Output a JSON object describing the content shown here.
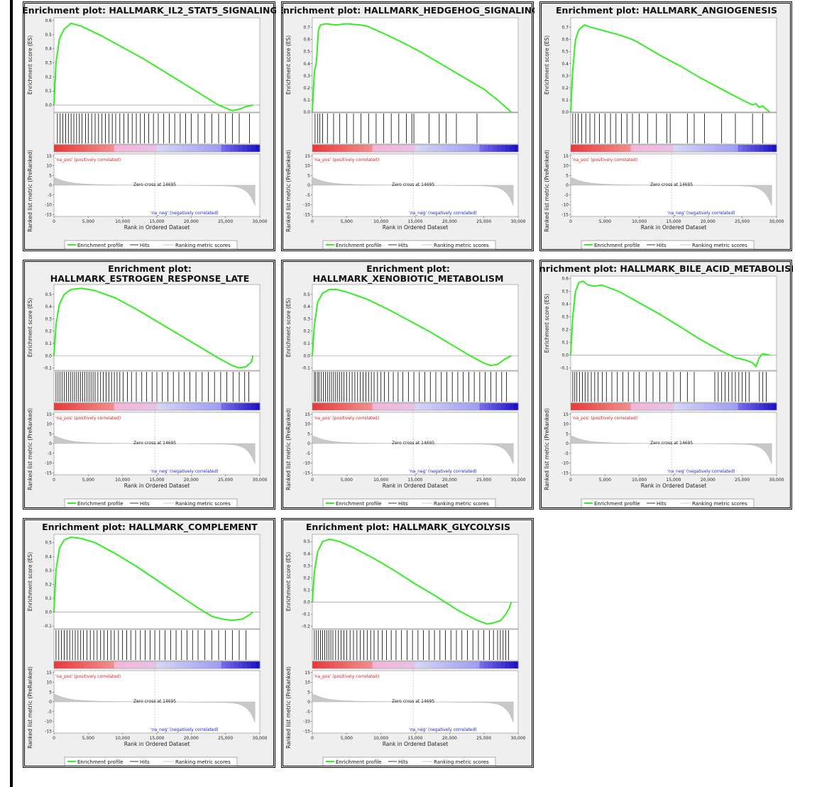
{
  "common": {
    "es_axis_label": "Enrichment score (ES)",
    "metric_axis_label": "Ranked list metric (PreRanked)",
    "x_axis_label": "Rank in Ordered Dataset",
    "x_ticks": [
      "0",
      "5,000",
      "10,000",
      "15,000",
      "20,000",
      "25,000",
      "30,000"
    ],
    "metric_ticks": [
      "15",
      "10",
      "5",
      "0",
      "-5",
      "-10",
      "-15"
    ],
    "pos_label": "'na_pos' (positively correlated)",
    "neg_label": "'na_neg' (negatively correlated)",
    "zero_cross_label": "Zero cross at 14695",
    "legend": [
      "Enrichment profile",
      "Hits",
      "Ranking metric scores"
    ],
    "colors": {
      "es_line": "#33ee22",
      "pos_text": "#e02020",
      "neg_text": "#2020cc",
      "metric_fill": "#c8c8c8"
    }
  },
  "chart_data": [
    {
      "type": "line",
      "title_lines": [
        "Enrichment plot: HALLMARK_IL2_STAT5_SIGNALING"
      ],
      "x_range": [
        0,
        30000
      ],
      "y_range": [
        -0.05,
        0.62
      ],
      "y_ticks": [
        "0.6",
        "0.5",
        "0.4",
        "0.3",
        "0.2",
        "0.1",
        "0.0"
      ],
      "y_tick_values": [
        0.6,
        0.5,
        0.4,
        0.3,
        0.2,
        0.1,
        0.0
      ],
      "series": [
        {
          "x": [
            0,
            300,
            800,
            1500,
            2500,
            4000,
            7000,
            10000,
            13000,
            16000,
            19000,
            22000,
            24000,
            26000,
            27000,
            28000,
            29000
          ],
          "values": [
            0.0,
            0.3,
            0.47,
            0.54,
            0.58,
            0.56,
            0.49,
            0.41,
            0.33,
            0.24,
            0.15,
            0.06,
            0.0,
            -0.04,
            -0.03,
            -0.01,
            0.0
          ]
        }
      ],
      "hits": [
        500,
        900,
        1300,
        1700,
        2100,
        2500,
        2900,
        3300,
        3700,
        4100,
        4600,
        5000,
        5500,
        6000,
        6500,
        7000,
        7500,
        8000,
        8500,
        9000,
        9600,
        10200,
        10800,
        11400,
        12000,
        12600,
        13200,
        13800,
        14500,
        15200,
        16000,
        16800,
        17600,
        18400,
        19200,
        20000,
        21000,
        22000,
        23000,
        24000,
        25000,
        26000,
        27000,
        28500
      ]
    },
    {
      "type": "line",
      "title_lines": [
        "Enrichment plot: HALLMARK_HEDGEHOG_SIGNALING"
      ],
      "x_range": [
        0,
        30000
      ],
      "y_range": [
        0,
        0.78
      ],
      "y_ticks": [
        "0.7",
        "0.6",
        "0.5",
        "0.4",
        "0.3",
        "0.2",
        "0.1",
        "0.0"
      ],
      "y_tick_values": [
        0.7,
        0.6,
        0.5,
        0.4,
        0.3,
        0.2,
        0.1,
        0.0
      ],
      "series": [
        {
          "x": [
            0,
            300,
            600,
            900,
            1200,
            2000,
            3500,
            5000,
            7000,
            8000,
            10000,
            13000,
            16000,
            19000,
            22000,
            25000,
            27000,
            29000
          ],
          "values": [
            0.0,
            0.33,
            0.42,
            0.68,
            0.72,
            0.73,
            0.72,
            0.73,
            0.72,
            0.71,
            0.66,
            0.58,
            0.49,
            0.39,
            0.29,
            0.19,
            0.1,
            0.0
          ]
        }
      ],
      "hits": [
        400,
        800,
        1100,
        1500,
        2200,
        3100,
        4000,
        5000,
        6000,
        7100,
        8200,
        9300,
        10400,
        11500,
        12600,
        13700,
        14500,
        14800,
        17000,
        18500,
        19500,
        21000,
        24000
      ]
    },
    {
      "type": "line",
      "title_lines": [
        "Enrichment plot: HALLMARK_ANGIOGENESIS"
      ],
      "x_range": [
        0,
        30000
      ],
      "y_range": [
        0,
        0.78
      ],
      "y_ticks": [
        "0.7",
        "0.6",
        "0.5",
        "0.4",
        "0.3",
        "0.2",
        "0.1",
        "0.0"
      ],
      "y_tick_values": [
        0.7,
        0.6,
        0.5,
        0.4,
        0.3,
        0.2,
        0.1,
        0.0
      ],
      "series": [
        {
          "x": [
            0,
            300,
            700,
            1200,
            2000,
            3000,
            5000,
            7000,
            9000,
            10000,
            13000,
            16000,
            19000,
            22000,
            25000,
            26500,
            27000,
            27500,
            28000,
            29000
          ],
          "values": [
            0.0,
            0.35,
            0.6,
            0.68,
            0.72,
            0.7,
            0.67,
            0.64,
            0.6,
            0.57,
            0.47,
            0.38,
            0.28,
            0.19,
            0.1,
            0.06,
            0.07,
            0.04,
            0.05,
            0.0
          ]
        }
      ],
      "hits": [
        300,
        700,
        1100,
        1600,
        2200,
        2800,
        3500,
        4200,
        5000,
        5800,
        6600,
        7400,
        8200,
        9000,
        10000,
        11200,
        12500,
        14000,
        14500,
        17000,
        18000,
        19500,
        22000,
        24000,
        26500,
        28000
      ]
    },
    {
      "type": "line",
      "title_lines": [
        "Enrichment plot:",
        "HALLMARK_ESTROGEN_RESPONSE_LATE"
      ],
      "x_range": [
        0,
        30000
      ],
      "y_range": [
        -0.12,
        0.58
      ],
      "y_ticks": [
        "0.5",
        "0.4",
        "0.3",
        "0.2",
        "0.1",
        "0.0",
        "-0.1"
      ],
      "y_tick_values": [
        0.5,
        0.4,
        0.3,
        0.2,
        0.1,
        0.0,
        -0.1
      ],
      "series": [
        {
          "x": [
            0,
            300,
            800,
            1500,
            2500,
            4000,
            6000,
            9000,
            12000,
            15000,
            18000,
            21000,
            24000,
            26000,
            27000,
            28000,
            28800,
            29000
          ],
          "values": [
            0.0,
            0.25,
            0.42,
            0.5,
            0.54,
            0.55,
            0.53,
            0.47,
            0.38,
            0.28,
            0.18,
            0.08,
            -0.02,
            -0.08,
            -0.1,
            -0.09,
            -0.05,
            0.0
          ]
        }
      ],
      "hits": [
        300,
        600,
        900,
        1200,
        1500,
        1800,
        2100,
        2400,
        2700,
        3000,
        3300,
        3600,
        3900,
        4200,
        4500,
        4800,
        5100,
        5400,
        5700,
        6000,
        6400,
        6800,
        7200,
        7600,
        8000,
        8400,
        8800,
        9200,
        9600,
        10100,
        10700,
        11300,
        12000,
        12800,
        13500,
        14300,
        15000,
        15800,
        16600,
        17400,
        18200,
        19000,
        19800,
        20700,
        21600,
        22500,
        23400,
        24300,
        25200,
        26100,
        27000,
        27800,
        28400
      ]
    },
    {
      "type": "line",
      "title_lines": [
        "Enrichment plot:",
        "HALLMARK_XENOBIOTIC_METABOLISM"
      ],
      "x_range": [
        0,
        30000
      ],
      "y_range": [
        -0.12,
        0.58
      ],
      "y_ticks": [
        "0.5",
        "0.4",
        "0.3",
        "0.2",
        "0.1",
        "0.0",
        "-0.1"
      ],
      "y_tick_values": [
        0.5,
        0.4,
        0.3,
        0.2,
        0.1,
        0.0,
        -0.1
      ],
      "series": [
        {
          "x": [
            0,
            300,
            800,
            1500,
            2500,
            3500,
            5000,
            8000,
            11000,
            14000,
            17000,
            20000,
            23000,
            25000,
            26000,
            27000,
            28000,
            29000
          ],
          "values": [
            0.0,
            0.25,
            0.44,
            0.51,
            0.54,
            0.54,
            0.52,
            0.46,
            0.38,
            0.29,
            0.2,
            0.1,
            0.0,
            -0.06,
            -0.08,
            -0.07,
            -0.03,
            0.0
          ]
        }
      ],
      "hits": [
        300,
        500,
        800,
        1000,
        1300,
        1600,
        1900,
        2200,
        2500,
        2800,
        3100,
        3400,
        3700,
        4000,
        4300,
        4600,
        5000,
        5400,
        5800,
        6200,
        6600,
        7000,
        7400,
        7800,
        8200,
        8600,
        9000,
        9500,
        10000,
        10500,
        11100,
        11800,
        12500,
        13200,
        14000,
        14800,
        15600,
        16400,
        17200,
        18000,
        18800,
        19600,
        20400,
        21200,
        22000,
        22800,
        23600,
        24400,
        25200,
        26000,
        26800,
        27600,
        28300
      ]
    },
    {
      "type": "line",
      "title_lines": [
        "Enrichment plot: HALLMARK_BILE_ACID_METABOLISM"
      ],
      "x_range": [
        0,
        30000
      ],
      "y_range": [
        -0.12,
        0.62
      ],
      "y_ticks": [
        "0.6",
        "0.5",
        "0.4",
        "0.3",
        "0.2",
        "0.1",
        "0.0",
        "-0.1"
      ],
      "y_tick_values": [
        0.6,
        0.5,
        0.4,
        0.3,
        0.2,
        0.1,
        0.0,
        -0.1
      ],
      "series": [
        {
          "x": [
            0,
            300,
            700,
            1200,
            1800,
            2500,
            3500,
            4500,
            5500,
            7000,
            10000,
            13000,
            16000,
            19000,
            22000,
            24000,
            25500,
            26500,
            27000,
            27500,
            28000,
            29000
          ],
          "values": [
            0.0,
            0.3,
            0.5,
            0.57,
            0.58,
            0.55,
            0.54,
            0.55,
            0.53,
            0.5,
            0.41,
            0.32,
            0.22,
            0.12,
            0.03,
            -0.02,
            -0.04,
            -0.06,
            -0.09,
            -0.02,
            0.01,
            0.0
          ]
        }
      ],
      "hits": [
        300,
        600,
        900,
        1300,
        1700,
        2100,
        2500,
        3000,
        3500,
        4000,
        4600,
        5200,
        6000,
        6800,
        7600,
        8400,
        9200,
        10000,
        11000,
        12000,
        13000,
        14000,
        15000,
        16000,
        17000,
        18000,
        21000,
        21500,
        22000,
        22500,
        23000,
        23500,
        24000,
        24500,
        25000,
        25500,
        26000,
        27500,
        28000,
        28500
      ]
    },
    {
      "type": "line",
      "title_lines": [
        "Enrichment plot: HALLMARK_COMPLEMENT"
      ],
      "x_range": [
        0,
        30000
      ],
      "y_range": [
        -0.12,
        0.56
      ],
      "y_ticks": [
        "0.5",
        "0.4",
        "0.3",
        "0.2",
        "0.1",
        "0.0",
        "-0.1"
      ],
      "y_tick_values": [
        0.5,
        0.4,
        0.3,
        0.2,
        0.1,
        0.0,
        -0.1
      ],
      "series": [
        {
          "x": [
            0,
            300,
            800,
            1500,
            2500,
            4000,
            6000,
            9000,
            12000,
            15000,
            18000,
            21000,
            23000,
            24500,
            26000,
            27500,
            28500,
            29000
          ],
          "values": [
            0.0,
            0.3,
            0.46,
            0.52,
            0.54,
            0.53,
            0.5,
            0.42,
            0.33,
            0.23,
            0.13,
            0.03,
            -0.03,
            -0.05,
            -0.06,
            -0.05,
            -0.02,
            0.0
          ]
        }
      ],
      "hits": [
        300,
        700,
        1100,
        1500,
        1900,
        2300,
        2700,
        3100,
        3500,
        3900,
        4300,
        4800,
        5300,
        5800,
        6300,
        6800,
        7300,
        7800,
        8300,
        8800,
        9400,
        10000,
        10600,
        11200,
        11900,
        12600,
        13300,
        14000,
        14700,
        15400,
        16200,
        17000,
        17800,
        18600,
        19400,
        20200,
        21000,
        22000,
        23000,
        24000,
        25000,
        26000,
        27000,
        28000
      ]
    },
    {
      "type": "line",
      "title_lines": [
        "Enrichment plot: HALLMARK_GLYCOLYSIS"
      ],
      "x_range": [
        0,
        30000
      ],
      "y_range": [
        -0.22,
        0.56
      ],
      "y_ticks": [
        "0.5",
        "0.4",
        "0.3",
        "0.2",
        "0.1",
        "0.0",
        "-0.1",
        "-0.2"
      ],
      "y_tick_values": [
        0.5,
        0.4,
        0.3,
        0.2,
        0.1,
        0.0,
        -0.1,
        -0.2
      ],
      "series": [
        {
          "x": [
            0,
            300,
            800,
            1500,
            2500,
            4000,
            6000,
            9000,
            12000,
            15000,
            18000,
            21000,
            24000,
            25500,
            26500,
            27500,
            28200,
            28700,
            29000
          ],
          "values": [
            0.0,
            0.25,
            0.42,
            0.5,
            0.52,
            0.5,
            0.45,
            0.36,
            0.26,
            0.15,
            0.05,
            -0.06,
            -0.15,
            -0.18,
            -0.17,
            -0.15,
            -0.1,
            -0.05,
            0.0
          ]
        }
      ],
      "hits": [
        300,
        600,
        900,
        1200,
        1500,
        1800,
        2100,
        2400,
        2700,
        3000,
        3400,
        3800,
        4200,
        4600,
        5000,
        5500,
        6000,
        6500,
        7000,
        7500,
        8000,
        8500,
        9000,
        9600,
        10200,
        10800,
        11500,
        12200,
        13000,
        13800,
        14600,
        15400,
        16200,
        17000,
        17800,
        18600,
        19400,
        20200,
        21000,
        21800,
        22600,
        23400,
        24200,
        25000,
        25800,
        26400,
        27000,
        27400,
        27800,
        28200,
        28600
      ]
    }
  ]
}
